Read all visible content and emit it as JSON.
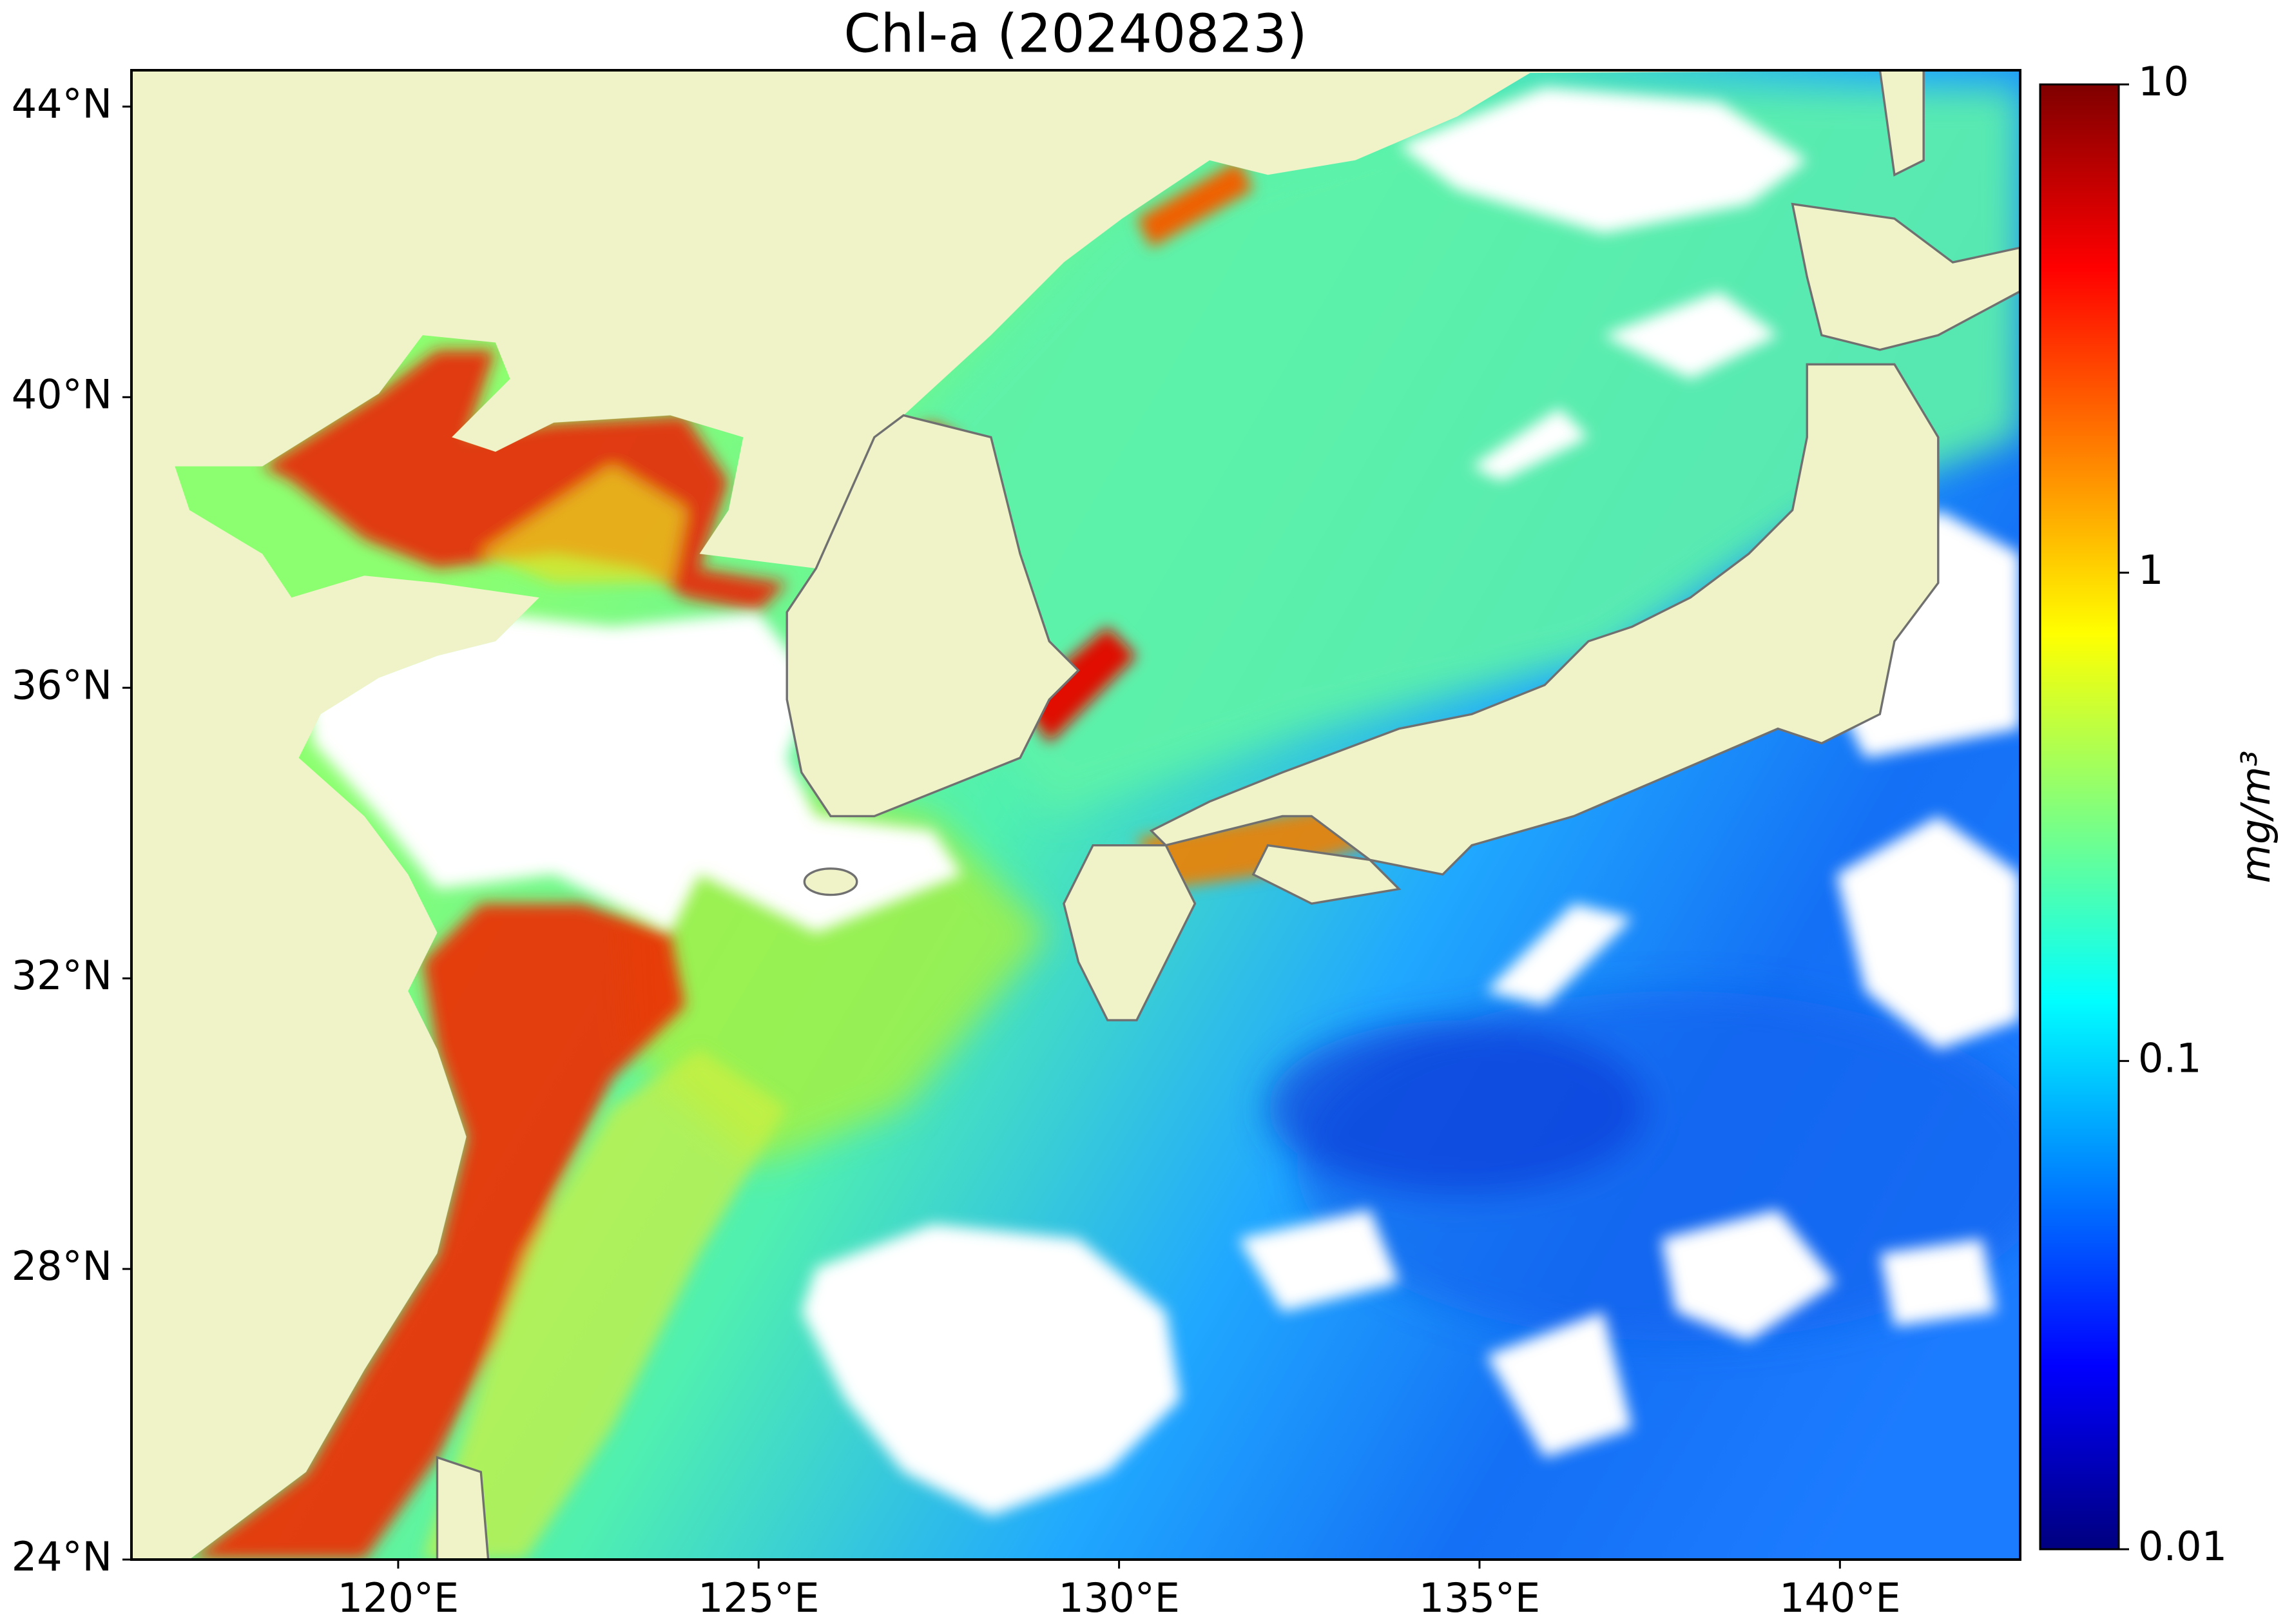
{
  "chart_data": {
    "type": "map",
    "title": "Chl-a (20240823)",
    "xlim": [
      116.3,
      142.5
    ],
    "ylim": [
      24,
      44.5
    ],
    "xticks": [
      {
        "value": 120,
        "label": "120°E"
      },
      {
        "value": 125,
        "label": "125°E"
      },
      {
        "value": 130,
        "label": "130°E"
      },
      {
        "value": 135,
        "label": "135°E"
      },
      {
        "value": 140,
        "label": "140°E"
      }
    ],
    "yticks": [
      {
        "value": 24,
        "label": "24°N"
      },
      {
        "value": 28,
        "label": "28°N"
      },
      {
        "value": 32,
        "label": "32°N"
      },
      {
        "value": 36,
        "label": "36°N"
      },
      {
        "value": 40,
        "label": "40°N"
      },
      {
        "value": 44,
        "label": "44°N"
      }
    ],
    "colorbar": {
      "label": "mg/m³",
      "log": true,
      "lim": [
        0.01,
        10
      ],
      "ticks": [
        0.01,
        0.1,
        1,
        10
      ],
      "colormap": "jet"
    }
  }
}
